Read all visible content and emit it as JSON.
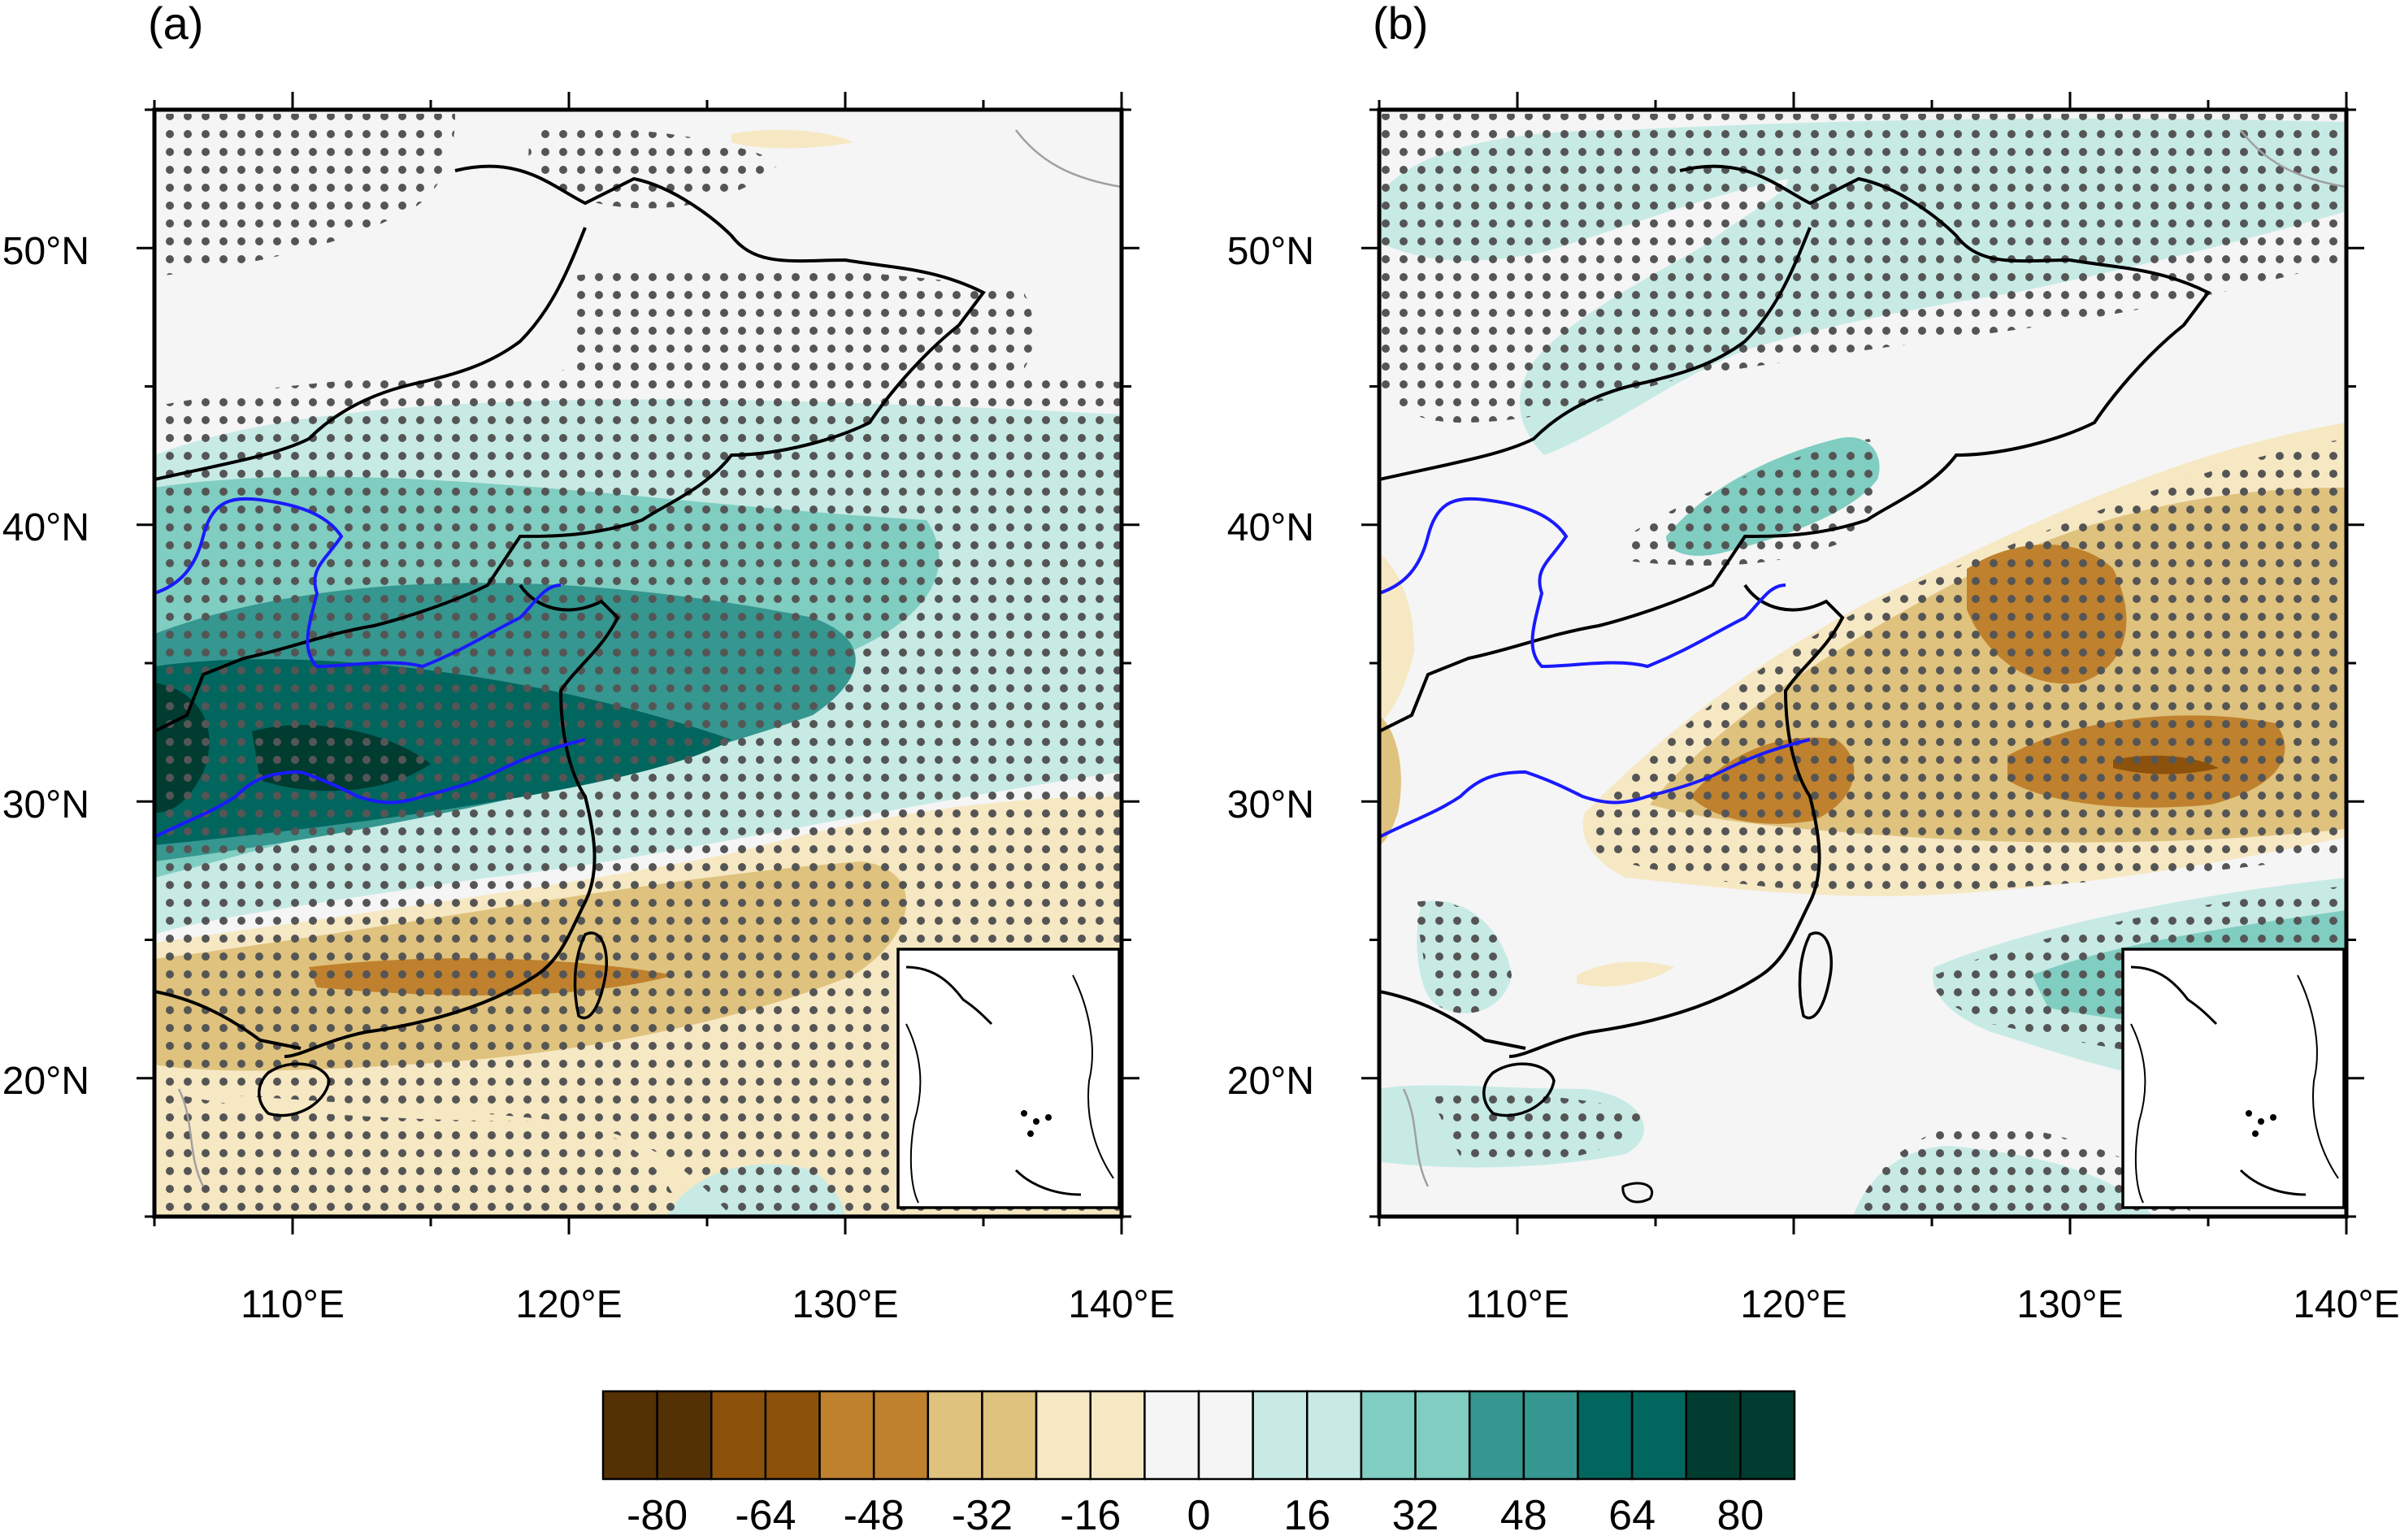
{
  "panels": [
    {
      "id": "a",
      "label": "(a)"
    },
    {
      "id": "b",
      "label": "(b)"
    }
  ],
  "lat_ticks": [
    {
      "value": 50,
      "text": "50°N"
    },
    {
      "value": 40,
      "text": "40°N"
    },
    {
      "value": 30,
      "text": "30°N"
    },
    {
      "value": 20,
      "text": "20°N"
    }
  ],
  "lon_ticks": [
    {
      "value": 110,
      "text": "110°E"
    },
    {
      "value": 120,
      "text": "120°E"
    },
    {
      "value": 130,
      "text": "130°E"
    },
    {
      "value": 140,
      "text": "140°E"
    }
  ],
  "extent": {
    "lon": [
      105,
      140
    ],
    "lat": [
      15,
      55
    ]
  },
  "colorbar": {
    "labels": [
      "-80",
      "-64",
      "-48",
      "-32",
      "-16",
      "0",
      "16",
      "32",
      "48",
      "64",
      "80"
    ],
    "colors": [
      "#543005",
      "#543005",
      "#8c510a",
      "#8c510a",
      "#bf812d",
      "#bf812d",
      "#dfc27d",
      "#dfc27d",
      "#f6e8c3",
      "#f6e8c3",
      "#f5f5f5",
      "#f5f5f5",
      "#c7eae5",
      "#c7eae5",
      "#80cdc1",
      "#80cdc1",
      "#35978f",
      "#35978f",
      "#01665e",
      "#01665e",
      "#003c30",
      "#003c30"
    ]
  },
  "colors": {
    "background_field": "#f5f5f5",
    "river": "#1a1aff",
    "stipple": "#555555",
    "coast": "#000000",
    "border_gray": "#a0a0a0"
  }
}
